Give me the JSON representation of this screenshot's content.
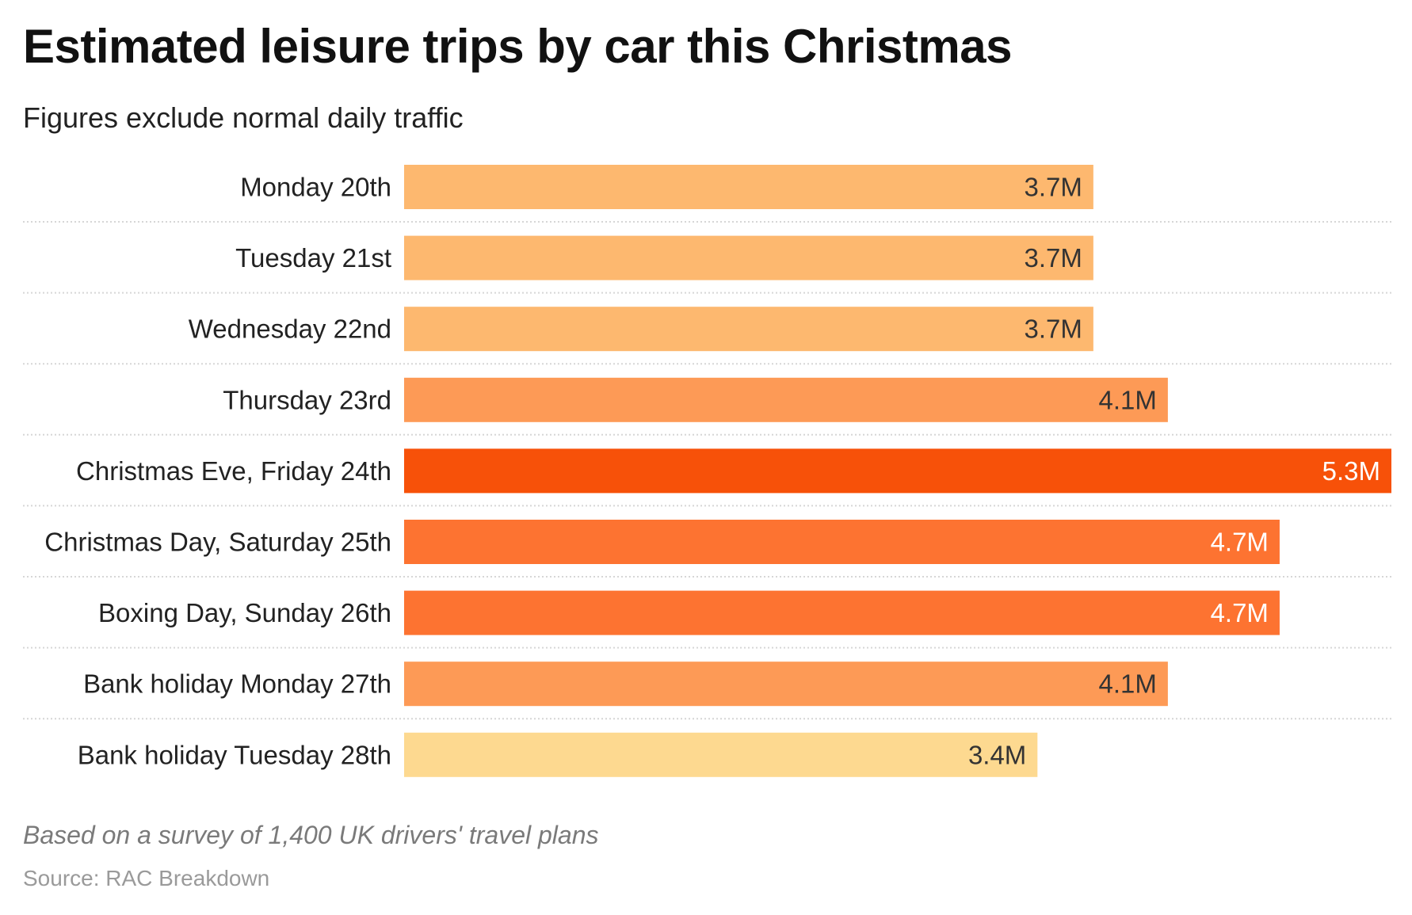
{
  "title": "Estimated leisure trips by car this Christmas",
  "subtitle": "Figures exclude normal daily traffic",
  "note": "Based on a survey of 1,400 UK drivers' travel plans",
  "source": "Source: RAC Breakdown",
  "chart_data": {
    "type": "bar",
    "orientation": "horizontal",
    "categories": [
      "Monday 20th",
      "Tuesday 21st",
      "Wednesday 22nd",
      "Thursday 23rd",
      "Christmas Eve, Friday 24th",
      "Christmas Day, Saturday 25th",
      "Boxing Day, Sunday 26th",
      "Bank holiday Monday 27th",
      "Bank holiday Tuesday 28th"
    ],
    "values": [
      3.7,
      3.7,
      3.7,
      4.1,
      5.3,
      4.7,
      4.7,
      4.1,
      3.4
    ],
    "value_labels": [
      "3.7M",
      "3.7M",
      "3.7M",
      "4.1M",
      "5.3M",
      "4.7M",
      "4.7M",
      "4.1M",
      "3.4M"
    ],
    "unit": "M",
    "xlim": [
      0,
      5.3
    ],
    "grid": false,
    "colors": [
      "#fdb86f",
      "#fdb86f",
      "#fdb86f",
      "#fd9a56",
      "#f75109",
      "#fd7331",
      "#fd7331",
      "#fd9a56",
      "#fdd990"
    ],
    "label_colors": [
      "#333333",
      "#333333",
      "#333333",
      "#333333",
      "#ffffff",
      "#ffffff",
      "#ffffff",
      "#333333",
      "#333333"
    ],
    "separator_color": "#d6d6d6"
  }
}
